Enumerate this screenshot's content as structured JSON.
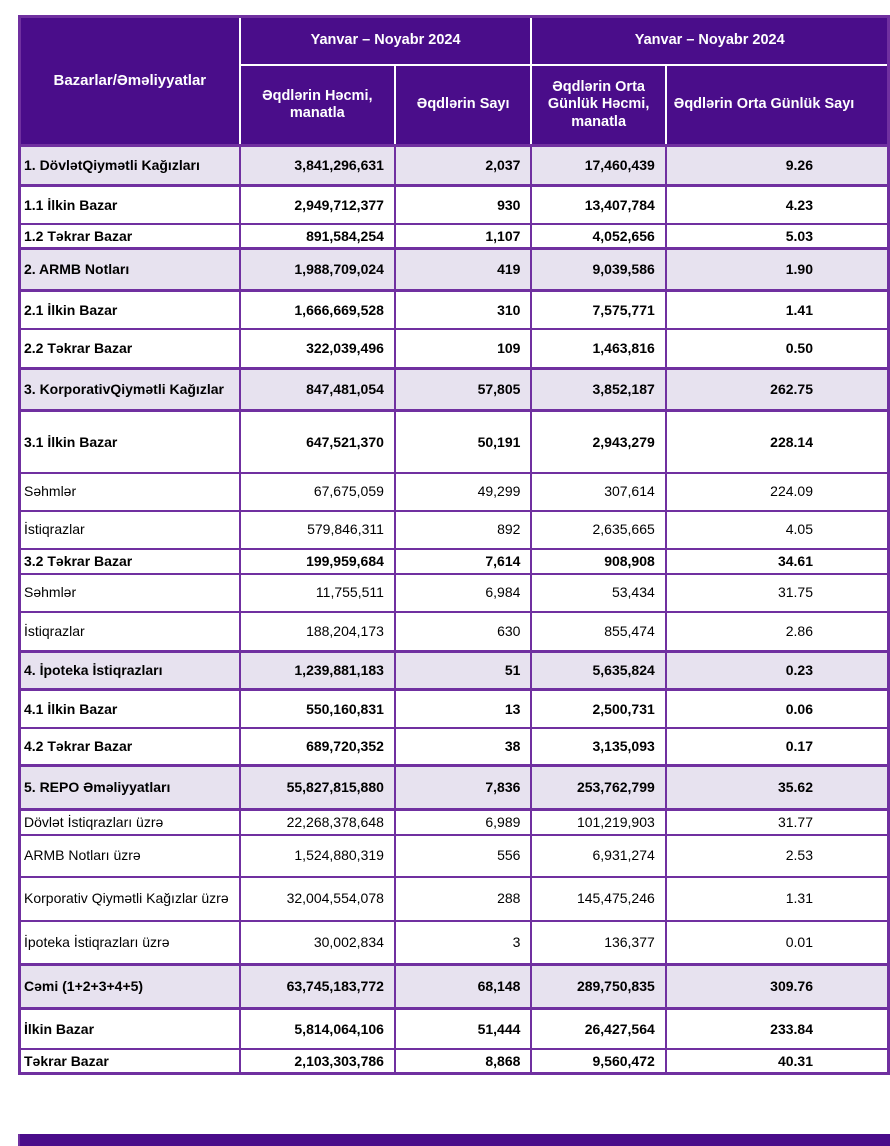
{
  "colors": {
    "header_bg": "#4A0D8A",
    "border": "#7030A0",
    "section_row_bg": "#E7E2EF",
    "header_text": "#FFFFFF",
    "body_text": "#000000"
  },
  "table": {
    "corner_header": "Bazarlar/Əməliyyatlar",
    "period_headers": [
      "Yanvar – Noyabr 2024",
      "Yanvar – Noyabr 2024"
    ],
    "column_headers": [
      "Əqdlərin Həcmi, manatla",
      "Əqdlərin Sayı",
      "Əqdlərin Orta Günlük Həcmi, manatla",
      "Əqdlərin Orta Günlük Sayı"
    ],
    "rows": [
      {
        "label": "1. DövlətQiymətli Kağızları",
        "level": "section",
        "values": [
          "3,841,296,631",
          "2,037",
          "17,460,439",
          "9.26"
        ]
      },
      {
        "label": "1.1 İlkin Bazar",
        "level": "sub",
        "values": [
          "2,949,712,377",
          "930",
          "13,407,784",
          "4.23"
        ]
      },
      {
        "label": "1.2 Təkrar Bazar",
        "level": "sub",
        "values": [
          "891,584,254",
          "1,107",
          "4,052,656",
          "5.03"
        ]
      },
      {
        "label": "2. ARMB Notları",
        "level": "section",
        "values": [
          "1,988,709,024",
          "419",
          "9,039,586",
          "1.90"
        ]
      },
      {
        "label": "2.1 İlkin Bazar",
        "level": "sub",
        "values": [
          "1,666,669,528",
          "310",
          "7,575,771",
          "1.41"
        ]
      },
      {
        "label": "2.2 Təkrar Bazar",
        "level": "sub",
        "values": [
          "322,039,496",
          "109",
          "1,463,816",
          "0.50"
        ]
      },
      {
        "label": "3. KorporativQiymətli Kağızlar",
        "level": "section",
        "values": [
          "847,481,054",
          "57,805",
          "3,852,187",
          "262.75"
        ]
      },
      {
        "label": "3.1 İlkin Bazar",
        "level": "sub",
        "values": [
          "647,521,370",
          "50,191",
          "2,943,279",
          "228.14"
        ]
      },
      {
        "label": "Səhmlər",
        "level": "detail",
        "values": [
          "67,675,059",
          "49,299",
          "307,614",
          "224.09"
        ]
      },
      {
        "label": "İstiqrazlar",
        "level": "detail",
        "values": [
          "579,846,311",
          "892",
          "2,635,665",
          "4.05"
        ]
      },
      {
        "label": "3.2 Təkrar Bazar",
        "level": "sub",
        "values": [
          "199,959,684",
          "7,614",
          "908,908",
          "34.61"
        ]
      },
      {
        "label": "Səhmlər",
        "level": "detail",
        "values": [
          "11,755,511",
          "6,984",
          "53,434",
          "31.75"
        ]
      },
      {
        "label": "İstiqrazlar",
        "level": "detail",
        "values": [
          "188,204,173",
          "630",
          "855,474",
          "2.86"
        ]
      },
      {
        "label": "4. İpoteka İstiqrazları",
        "level": "section",
        "values": [
          "1,239,881,183",
          "51",
          "5,635,824",
          "0.23"
        ]
      },
      {
        "label": "4.1 İlkin Bazar",
        "level": "sub",
        "values": [
          "550,160,831",
          "13",
          "2,500,731",
          "0.06"
        ]
      },
      {
        "label": "4.2 Təkrar Bazar",
        "level": "sub",
        "values": [
          "689,720,352",
          "38",
          "3,135,093",
          "0.17"
        ]
      },
      {
        "label": "5. REPO Əməliyyatları",
        "level": "section",
        "values": [
          "55,827,815,880",
          "7,836",
          "253,762,799",
          "35.62"
        ]
      },
      {
        "label": "Dövlət İstiqrazları üzrə",
        "level": "detail",
        "values": [
          "22,268,378,648",
          "6,989",
          "101,219,903",
          "31.77"
        ]
      },
      {
        "label": "ARMB Notları üzrə",
        "level": "detail",
        "values": [
          "1,524,880,319",
          "556",
          "6,931,274",
          "2.53"
        ]
      },
      {
        "label": "Korporativ Qiymətli Kağızlar üzrə",
        "level": "detail",
        "values": [
          "32,004,554,078",
          "288",
          "145,475,246",
          "1.31"
        ]
      },
      {
        "label": "İpoteka İstiqrazları üzrə",
        "level": "detail",
        "values": [
          "30,002,834",
          "3",
          "136,377",
          "0.01"
        ]
      },
      {
        "label": "Cəmi (1+2+3+4+5)",
        "level": "section",
        "values": [
          "63,745,183,772",
          "68,148",
          "289,750,835",
          "309.76"
        ]
      },
      {
        "label": "İlkin Bazar",
        "level": "sub",
        "values": [
          "5,814,064,106",
          "51,444",
          "26,427,564",
          "233.84"
        ]
      },
      {
        "label": "Təkrar Bazar",
        "level": "sub",
        "values": [
          "2,103,303,786",
          "8,868",
          "9,560,472",
          "40.31"
        ]
      }
    ]
  }
}
